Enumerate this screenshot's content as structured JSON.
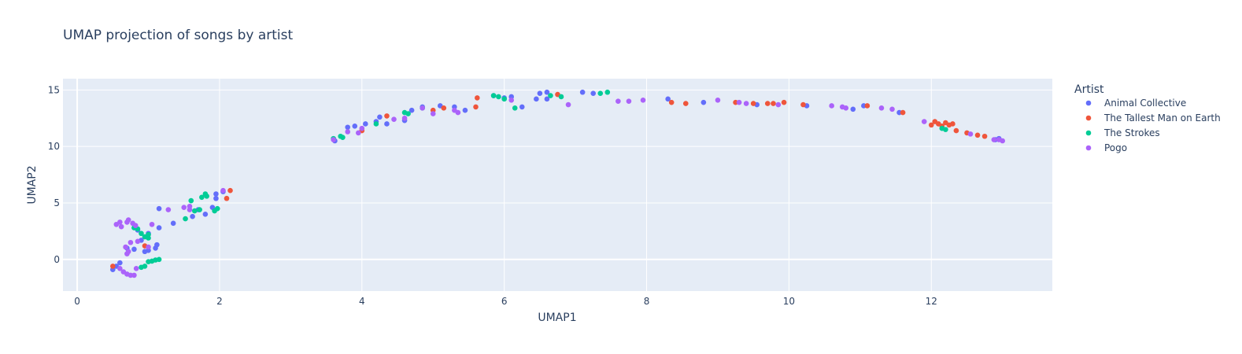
{
  "colors": {
    "plot_bg": "#e5ecf6",
    "grid": "#ffffff",
    "text": "#2a3f5f"
  },
  "chart_data": {
    "type": "scatter",
    "title": "UMAP projection of songs by artist",
    "xlabel": "UMAP1",
    "ylabel": "UMAP2",
    "xlim": [
      -0.2,
      13.7
    ],
    "ylim": [
      -2.8,
      16.0
    ],
    "xticks": [
      0,
      2,
      4,
      6,
      8,
      10,
      12
    ],
    "yticks": [
      0,
      5,
      10,
      15
    ],
    "legend": {
      "title": "Artist",
      "position": "right"
    },
    "series": [
      {
        "name": "Animal Collective",
        "color": "#636efa",
        "points": [
          [
            0.5,
            -0.9
          ],
          [
            0.55,
            -0.6
          ],
          [
            0.6,
            -0.3
          ],
          [
            0.7,
            1.0
          ],
          [
            0.8,
            0.9
          ],
          [
            0.95,
            0.7
          ],
          [
            1.0,
            0.8
          ],
          [
            1.1,
            1.0
          ],
          [
            1.12,
            1.3
          ],
          [
            0.9,
            1.7
          ],
          [
            1.0,
            2.3
          ],
          [
            0.85,
            2.6
          ],
          [
            1.15,
            2.8
          ],
          [
            1.15,
            4.5
          ],
          [
            1.35,
            3.2
          ],
          [
            1.62,
            3.8
          ],
          [
            1.7,
            4.4
          ],
          [
            1.8,
            4.0
          ],
          [
            1.9,
            4.6
          ],
          [
            1.95,
            5.4
          ],
          [
            1.95,
            5.8
          ],
          [
            2.05,
            6.0
          ],
          [
            3.62,
            10.5
          ],
          [
            3.8,
            11.7
          ],
          [
            3.9,
            11.8
          ],
          [
            4.05,
            12.0
          ],
          [
            4.2,
            12.2
          ],
          [
            4.25,
            12.6
          ],
          [
            4.35,
            12.0
          ],
          [
            4.6,
            12.3
          ],
          [
            4.7,
            13.2
          ],
          [
            4.85,
            13.5
          ],
          [
            5.1,
            13.6
          ],
          [
            5.3,
            13.5
          ],
          [
            5.45,
            13.2
          ],
          [
            5.85,
            14.5
          ],
          [
            6.0,
            14.3
          ],
          [
            6.1,
            14.4
          ],
          [
            6.25,
            13.5
          ],
          [
            6.45,
            14.2
          ],
          [
            6.5,
            14.7
          ],
          [
            6.6,
            14.8
          ],
          [
            6.6,
            14.2
          ],
          [
            7.1,
            14.8
          ],
          [
            7.25,
            14.7
          ],
          [
            8.3,
            14.2
          ],
          [
            8.8,
            13.9
          ],
          [
            9.55,
            13.7
          ],
          [
            10.25,
            13.6
          ],
          [
            10.9,
            13.3
          ],
          [
            11.05,
            13.6
          ],
          [
            11.55,
            13.0
          ],
          [
            12.9,
            10.6
          ],
          [
            12.95,
            10.7
          ]
        ]
      },
      {
        "name": "The Tallest Man on Earth",
        "color": "#ef553b",
        "points": [
          [
            0.5,
            -0.6
          ],
          [
            0.95,
            1.2
          ],
          [
            2.1,
            5.4
          ],
          [
            2.15,
            6.1
          ],
          [
            4.0,
            11.4
          ],
          [
            4.35,
            12.7
          ],
          [
            5.0,
            13.2
          ],
          [
            5.15,
            13.4
          ],
          [
            5.6,
            13.5
          ],
          [
            5.62,
            14.3
          ],
          [
            6.75,
            14.6
          ],
          [
            8.35,
            13.9
          ],
          [
            8.55,
            13.8
          ],
          [
            9.25,
            13.9
          ],
          [
            9.5,
            13.8
          ],
          [
            9.7,
            13.8
          ],
          [
            9.78,
            13.8
          ],
          [
            9.93,
            13.9
          ],
          [
            10.2,
            13.7
          ],
          [
            11.1,
            13.6
          ],
          [
            11.6,
            13.0
          ],
          [
            12.0,
            11.9
          ],
          [
            12.05,
            12.2
          ],
          [
            12.1,
            12.0
          ],
          [
            12.15,
            11.8
          ],
          [
            12.2,
            12.1
          ],
          [
            12.25,
            11.9
          ],
          [
            12.3,
            12.0
          ],
          [
            12.35,
            11.4
          ],
          [
            12.5,
            11.2
          ],
          [
            12.65,
            11.0
          ],
          [
            12.75,
            10.9
          ]
        ]
      },
      {
        "name": "The Strokes",
        "color": "#00cc96",
        "points": [
          [
            0.8,
            2.8
          ],
          [
            0.85,
            2.7
          ],
          [
            0.9,
            2.3
          ],
          [
            0.95,
            2.0
          ],
          [
            1.0,
            2.2
          ],
          [
            1.0,
            1.9
          ],
          [
            0.9,
            -0.7
          ],
          [
            0.95,
            -0.6
          ],
          [
            1.0,
            -0.2
          ],
          [
            1.05,
            -0.15
          ],
          [
            1.1,
            -0.05
          ],
          [
            1.15,
            0.0
          ],
          [
            1.52,
            3.6
          ],
          [
            1.6,
            5.2
          ],
          [
            1.65,
            4.3
          ],
          [
            1.72,
            4.4
          ],
          [
            1.75,
            5.5
          ],
          [
            1.8,
            5.8
          ],
          [
            1.82,
            5.6
          ],
          [
            1.93,
            4.3
          ],
          [
            1.97,
            4.5
          ],
          [
            3.6,
            10.7
          ],
          [
            3.7,
            10.9
          ],
          [
            3.73,
            10.8
          ],
          [
            4.2,
            12.0
          ],
          [
            4.6,
            13.0
          ],
          [
            4.65,
            12.9
          ],
          [
            4.85,
            13.4
          ],
          [
            5.85,
            14.5
          ],
          [
            5.92,
            14.4
          ],
          [
            6.0,
            14.2
          ],
          [
            6.15,
            13.4
          ],
          [
            6.65,
            14.5
          ],
          [
            6.8,
            14.4
          ],
          [
            7.35,
            14.7
          ],
          [
            7.45,
            14.8
          ],
          [
            12.15,
            11.6
          ],
          [
            12.2,
            11.5
          ]
        ]
      },
      {
        "name": "Pogo",
        "color": "#ab63fa",
        "points": [
          [
            0.55,
            3.1
          ],
          [
            0.6,
            3.3
          ],
          [
            0.62,
            2.9
          ],
          [
            0.7,
            3.3
          ],
          [
            0.72,
            3.5
          ],
          [
            0.78,
            3.2
          ],
          [
            0.82,
            3.0
          ],
          [
            0.7,
            0.5
          ],
          [
            0.72,
            0.7
          ],
          [
            0.68,
            1.1
          ],
          [
            0.75,
            1.5
          ],
          [
            0.85,
            1.6
          ],
          [
            1.0,
            1.1
          ],
          [
            1.05,
            3.1
          ],
          [
            0.6,
            -0.8
          ],
          [
            0.65,
            -1.1
          ],
          [
            0.7,
            -1.3
          ],
          [
            0.75,
            -1.4
          ],
          [
            0.8,
            -1.4
          ],
          [
            0.83,
            -0.8
          ],
          [
            1.28,
            4.4
          ],
          [
            1.5,
            4.6
          ],
          [
            1.58,
            4.4
          ],
          [
            1.58,
            4.7
          ],
          [
            2.05,
            6.1
          ],
          [
            3.6,
            10.6
          ],
          [
            3.8,
            11.3
          ],
          [
            3.95,
            11.2
          ],
          [
            4.0,
            11.6
          ],
          [
            4.45,
            12.4
          ],
          [
            4.6,
            12.5
          ],
          [
            4.85,
            13.4
          ],
          [
            5.0,
            12.9
          ],
          [
            5.3,
            13.2
          ],
          [
            5.35,
            13.0
          ],
          [
            6.1,
            14.1
          ],
          [
            6.9,
            13.7
          ],
          [
            7.6,
            14.0
          ],
          [
            7.75,
            14.0
          ],
          [
            7.95,
            14.1
          ],
          [
            9.0,
            14.1
          ],
          [
            9.3,
            13.9
          ],
          [
            9.4,
            13.8
          ],
          [
            9.85,
            13.7
          ],
          [
            10.6,
            13.6
          ],
          [
            10.75,
            13.5
          ],
          [
            10.8,
            13.4
          ],
          [
            11.3,
            13.4
          ],
          [
            11.45,
            13.3
          ],
          [
            11.9,
            12.2
          ],
          [
            12.55,
            11.1
          ],
          [
            12.88,
            10.6
          ],
          [
            12.95,
            10.6
          ],
          [
            13.0,
            10.5
          ]
        ]
      }
    ]
  }
}
